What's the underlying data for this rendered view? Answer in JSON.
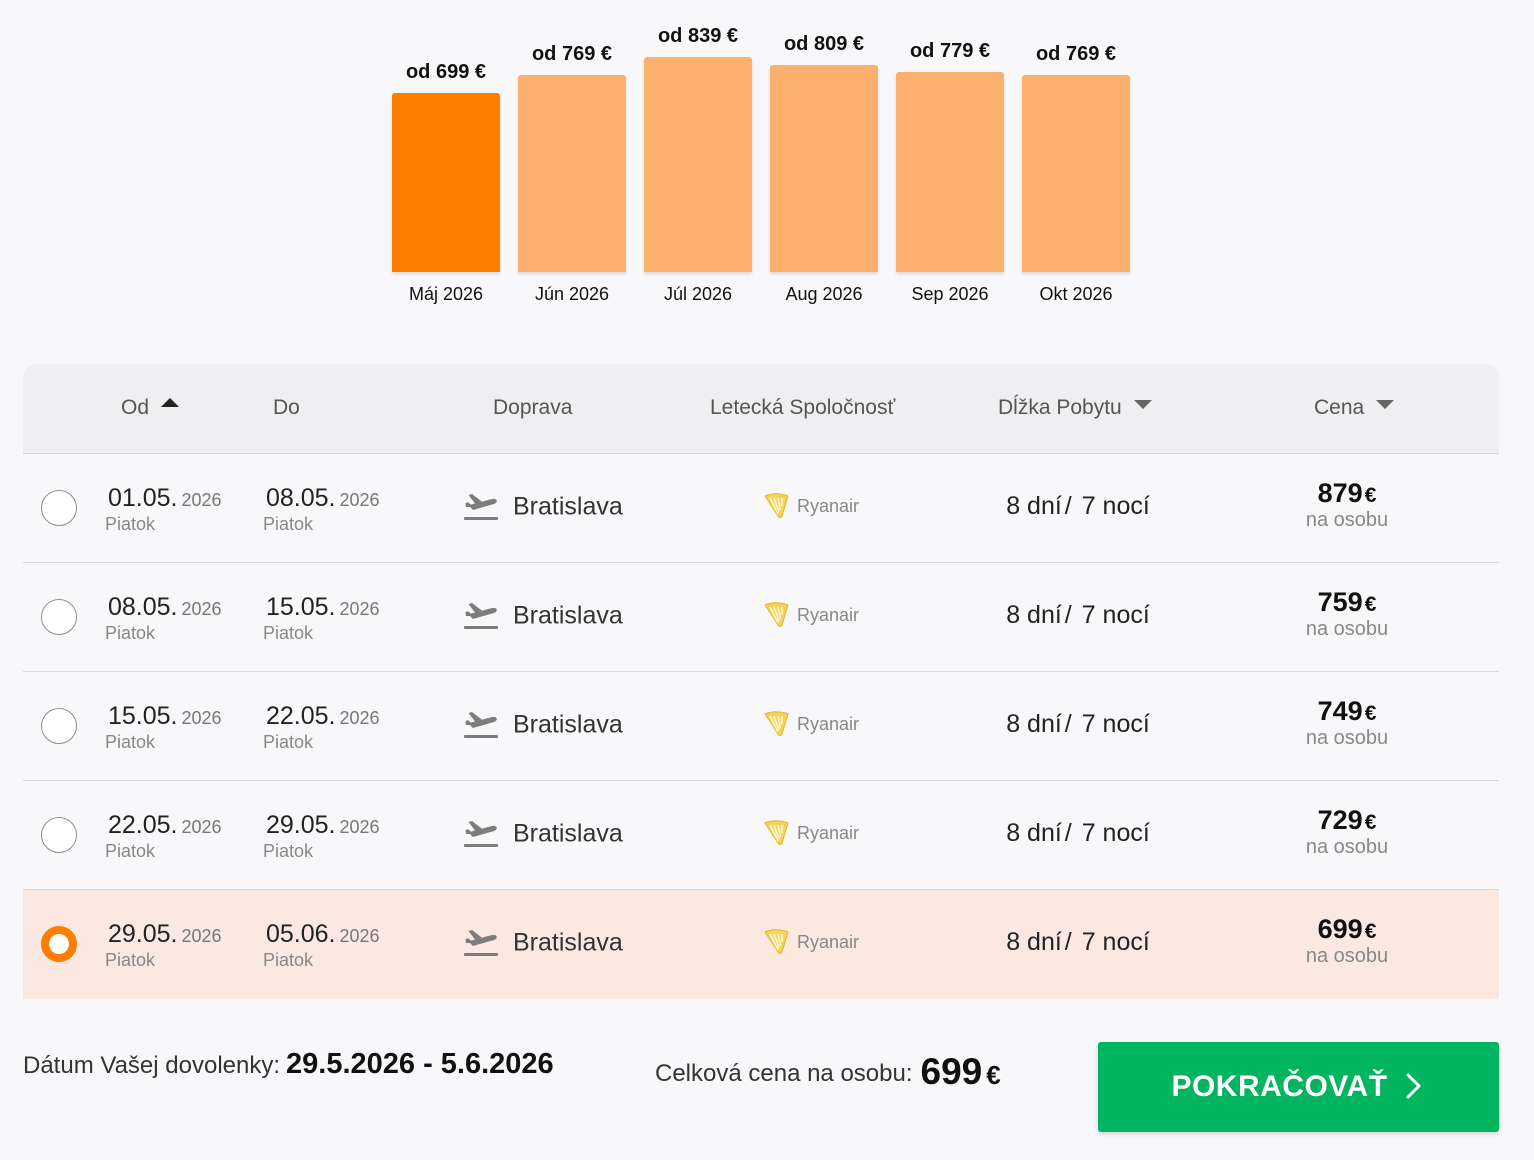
{
  "chart_data": {
    "type": "bar",
    "categories": [
      "Máj 2026",
      "Jún 2026",
      "Júl 2026",
      "Aug 2026",
      "Sep 2026",
      "Okt 2026"
    ],
    "values": [
      699,
      769,
      839,
      809,
      779,
      769
    ],
    "value_labels": [
      "od 699 €",
      "od 769 €",
      "od 839 €",
      "od 809 €",
      "od 779 €",
      "od 769 €"
    ],
    "selected_index": 0,
    "colors": {
      "selected": "#fe7d00",
      "default": "#fbb06e"
    }
  },
  "table": {
    "headers": {
      "od": "Od",
      "do": "Do",
      "doprava": "Doprava",
      "airline": "Letecká Spoločnosť",
      "duration": "Dĺžka Pobytu",
      "price": "Cena"
    },
    "rows": [
      {
        "from_date": "01.05.",
        "from_year": "2026",
        "from_day": "Piatok",
        "to_date": "08.05.",
        "to_year": "2026",
        "to_day": "Piatok",
        "transport": "Bratislava",
        "airline": "Ryanair",
        "days": "8 dní",
        "slash": "/",
        "nights": "7 nocí",
        "price": "879",
        "currency": "€",
        "price_note": "na osobu",
        "selected": false
      },
      {
        "from_date": "08.05.",
        "from_year": "2026",
        "from_day": "Piatok",
        "to_date": "15.05.",
        "to_year": "2026",
        "to_day": "Piatok",
        "transport": "Bratislava",
        "airline": "Ryanair",
        "days": "8 dní",
        "slash": "/",
        "nights": "7 nocí",
        "price": "759",
        "currency": "€",
        "price_note": "na osobu",
        "selected": false
      },
      {
        "from_date": "15.05.",
        "from_year": "2026",
        "from_day": "Piatok",
        "to_date": "22.05.",
        "to_year": "2026",
        "to_day": "Piatok",
        "transport": "Bratislava",
        "airline": "Ryanair",
        "days": "8 dní",
        "slash": "/",
        "nights": "7 nocí",
        "price": "749",
        "currency": "€",
        "price_note": "na osobu",
        "selected": false
      },
      {
        "from_date": "22.05.",
        "from_year": "2026",
        "from_day": "Piatok",
        "to_date": "29.05.",
        "to_year": "2026",
        "to_day": "Piatok",
        "transport": "Bratislava",
        "airline": "Ryanair",
        "days": "8 dní",
        "slash": "/",
        "nights": "7 nocí",
        "price": "729",
        "currency": "€",
        "price_note": "na osobu",
        "selected": false
      },
      {
        "from_date": "29.05.",
        "from_year": "2026",
        "from_day": "Piatok",
        "to_date": "05.06.",
        "to_year": "2026",
        "to_day": "Piatok",
        "transport": "Bratislava",
        "airline": "Ryanair",
        "days": "8 dní",
        "slash": "/",
        "nights": "7 nocí",
        "price": "699",
        "currency": "€",
        "price_note": "na osobu",
        "selected": true
      }
    ]
  },
  "footer": {
    "date_label": "Dátum Vašej dovolenky:",
    "date_value": "29.5.2026 - 5.6.2026",
    "total_label": "Celková cena na osobu:",
    "total_value": "699",
    "total_currency": "€",
    "continue_label": "POKRAČOVAŤ"
  },
  "icons": {
    "transport": "airplane-departure-icon",
    "airline": "ryanair-harp-icon",
    "continue": "chevron-right-icon",
    "sort_asc": "sort-ascending-icon",
    "sort_desc": "sort-descending-icon"
  },
  "colors": {
    "accent": "#fe7d00",
    "bar_default": "#fbb06e",
    "selected_row": "#fbe8e1",
    "primary_button": "#01b460",
    "airline_logo": "#f1c933"
  }
}
